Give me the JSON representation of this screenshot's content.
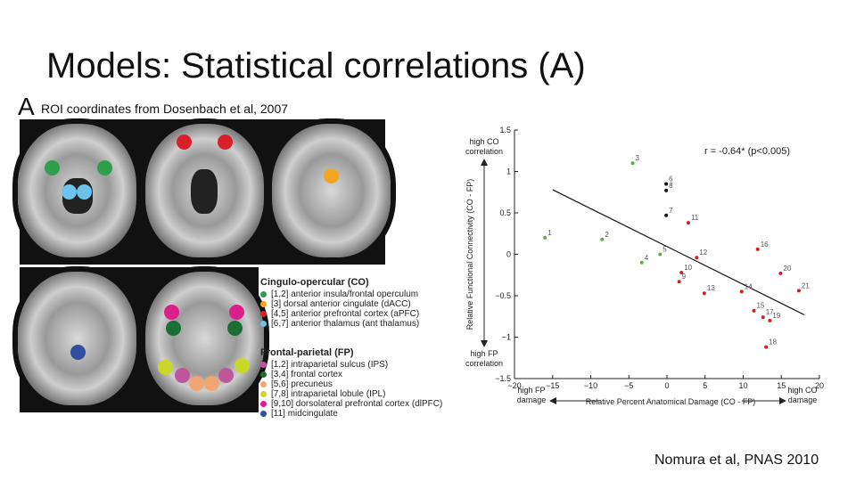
{
  "slide": {
    "title": "Models: Statistical correlations (A)",
    "credit": "Nomura et al, PNAS 2010"
  },
  "figure_a": {
    "letter": "A",
    "caption": "ROI coordinates from Dosenbach et al, 2007",
    "legend_co": {
      "heading": "Cingulo-opercular (CO)",
      "items": [
        {
          "label": "[1,2] anterior insula/frontal operculum",
          "color": "#2e9e4a"
        },
        {
          "label": "[3] dorsal anterior cingulate (dACC)",
          "color": "#f2a51e"
        },
        {
          "label": "[4,5] anterior prefrontal cortex (aPFC)",
          "color": "#d8202a"
        },
        {
          "label": "[6,7] anterior thalamus (ant thalamus)",
          "color": "#6cc4ec"
        }
      ]
    },
    "legend_fp": {
      "heading": "Frontal-parietal (FP)",
      "items": [
        {
          "label": "[1,2] intraparietal sulcus (IPS)",
          "color": "#c0559c"
        },
        {
          "label": "[3,4] frontal cortex",
          "color": "#1c6e35"
        },
        {
          "label": "[5,6] precuneus",
          "color": "#f2a574"
        },
        {
          "label": "[7,8] intraparietal lobule (IPL)",
          "color": "#c9d62a"
        },
        {
          "label": "[9,10] dorsolateral prefrontal cortex (dlPFC)",
          "color": "#dd1f8c"
        },
        {
          "label": "[11] midcingulate",
          "color": "#2f4fa0"
        }
      ]
    }
  },
  "chart_data": {
    "type": "scatter",
    "panel_letter": "A",
    "annotation": "r = -0.64* (p<0.005)",
    "ylabel": "Relative Functional Connectivity (CO - FP)",
    "xlabel": "Relative Percent Anatomical Damage (CO - FP)",
    "y_top_label": [
      "high CO",
      "correlation"
    ],
    "y_bottom_label": [
      "high FP",
      "correlation"
    ],
    "x_left_label": [
      "high FP",
      "damage"
    ],
    "x_right_label": [
      "high CO",
      "damage"
    ],
    "xlim": [
      -20,
      20
    ],
    "ylim": [
      -1.5,
      1.5
    ],
    "xticks": [
      "−20",
      "−15",
      "−10",
      "−5",
      "0",
      "5",
      "10",
      "15",
      "20"
    ],
    "xtick_values": [
      -20,
      -15,
      -10,
      -5,
      0,
      5,
      10,
      15,
      20
    ],
    "yticks": [
      "1.5",
      "1",
      "0.5",
      "0",
      "−0.5",
      "−1",
      "−1.5"
    ],
    "ytick_values": [
      1.5,
      1,
      0.5,
      0,
      -0.5,
      -1,
      -1.5
    ],
    "fit_line": {
      "x": [
        -15,
        18
      ],
      "y": [
        0.78,
        -0.73
      ]
    },
    "series": [
      {
        "group": "green",
        "color": "#6aa84f",
        "points": [
          {
            "label": "3",
            "x": -4.5,
            "y": 1.1
          },
          {
            "label": "1",
            "x": -16,
            "y": 0.2
          },
          {
            "label": "2",
            "x": -8.5,
            "y": 0.18
          },
          {
            "label": "4",
            "x": -3.3,
            "y": -0.1
          },
          {
            "label": "5",
            "x": -0.9,
            "y": 0.0
          }
        ]
      },
      {
        "group": "black",
        "color": "#111111",
        "points": [
          {
            "label": "6",
            "x": -0.1,
            "y": 0.85
          },
          {
            "label": "8",
            "x": -0.1,
            "y": 0.77
          },
          {
            "label": "7",
            "x": -0.1,
            "y": 0.47
          }
        ]
      },
      {
        "group": "red",
        "color": "#cc2222",
        "points": [
          {
            "label": "11",
            "x": 2.8,
            "y": 0.38
          },
          {
            "label": "16",
            "x": 11.9,
            "y": 0.06
          },
          {
            "label": "12",
            "x": 3.9,
            "y": -0.04
          },
          {
            "label": "20",
            "x": 14.9,
            "y": -0.23
          },
          {
            "label": "10",
            "x": 1.9,
            "y": -0.22
          },
          {
            "label": "9",
            "x": 1.6,
            "y": -0.33
          },
          {
            "label": "21",
            "x": 17.3,
            "y": -0.44
          },
          {
            "label": "13",
            "x": 4.9,
            "y": -0.47
          },
          {
            "label": "14",
            "x": 9.8,
            "y": -0.45
          },
          {
            "label": "15",
            "x": 11.4,
            "y": -0.68
          },
          {
            "label": "17",
            "x": 12.6,
            "y": -0.76
          },
          {
            "label": "19",
            "x": 13.5,
            "y": -0.8
          },
          {
            "label": "18",
            "x": 13.0,
            "y": -1.12
          }
        ]
      }
    ]
  }
}
